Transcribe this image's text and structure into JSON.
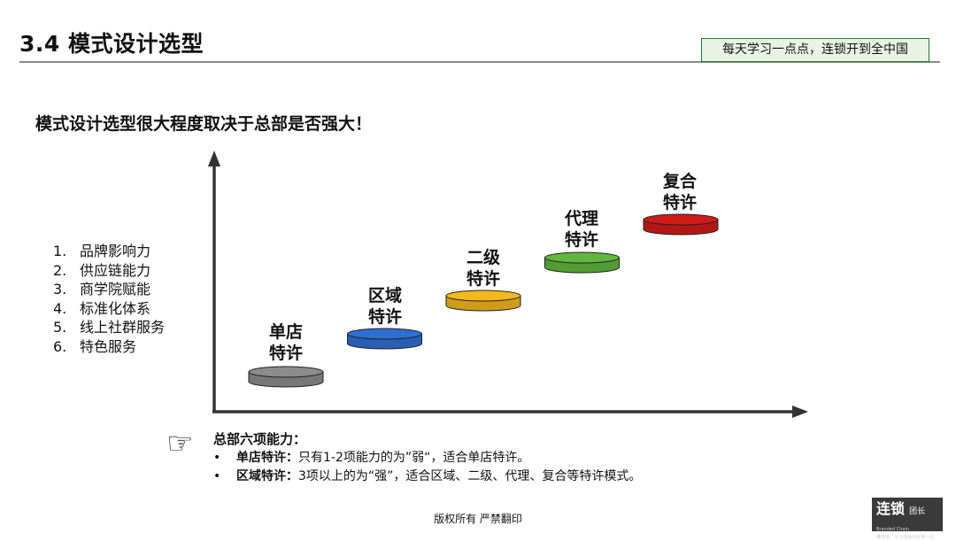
{
  "header": {
    "title": "3.4  模式设计选型",
    "slogan": "每天学习一点点，连锁开到全中国"
  },
  "subtitle": "模式设计选型很大程度取决于总部是否强大！",
  "abilities": [
    {
      "num": "1.",
      "label": "品牌影响力"
    },
    {
      "num": "2.",
      "label": "供应链能力"
    },
    {
      "num": "3.",
      "label": "商学院赋能"
    },
    {
      "num": "4.",
      "label": "标准化体系"
    },
    {
      "num": "5.",
      "label": "线上社群服务"
    },
    {
      "num": "6.",
      "label": "特色服务"
    }
  ],
  "stages": [
    {
      "line1": "单店",
      "line2": "特许",
      "color": "#8c8c8c",
      "level": 1
    },
    {
      "line1": "区域",
      "line2": "特许",
      "color": "#2f6fd4",
      "level": 2
    },
    {
      "line1": "二级",
      "line2": "特许",
      "color": "#f2b81c",
      "level": 3
    },
    {
      "line1": "代理",
      "line2": "特许",
      "color": "#62b63e",
      "level": 4
    },
    {
      "line1": "复合",
      "line2": "特许",
      "color": "#d01b1b",
      "level": 5
    }
  ],
  "summary": {
    "heading": "总部六项能力：",
    "bullet": "•",
    "items": [
      {
        "term": "单店特许：",
        "text": "只有1-2项能力的为”弱“，适合单店特许。"
      },
      {
        "term": "区域特许：",
        "text": "3项以上的为“强”，适合区域、二级、代理、复合等特许模式。"
      }
    ]
  },
  "footer": "版权所有  严禁翻印",
  "logo": {
    "name": "连锁",
    "sub": "团长",
    "sub_en": "Branded Chain",
    "tagline": "懂连锁，专注连锁创业第一站"
  },
  "icons": {
    "pointer": "pointing-hand-icon"
  }
}
